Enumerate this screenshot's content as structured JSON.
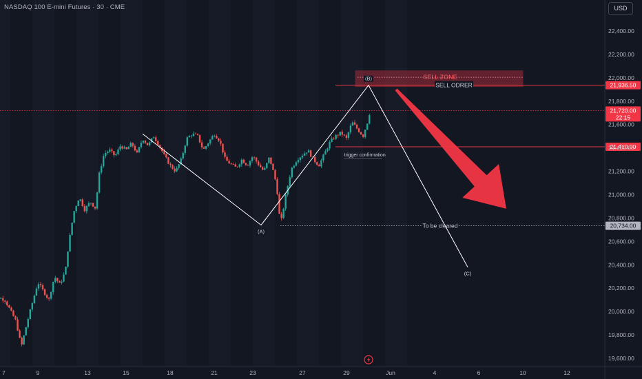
{
  "header": {
    "title": "NASDAQ 100 E-mini Futures · 30 · CME",
    "currency": "USD"
  },
  "colors": {
    "background": "#131722",
    "up": "#26a69a",
    "down": "#ef5350",
    "annotation_red": "#f23645",
    "arrow_red": "#f23645",
    "wave_line": "#ffffff"
  },
  "chart_data": {
    "type": "candlestick",
    "title": "NASDAQ 100 E-mini Futures · 30 · CME",
    "y_axis": {
      "position": "right",
      "ylim": [
        19550,
        22550
      ],
      "ticks": [
        19600,
        19800,
        20000,
        20200,
        20400,
        20600,
        20800,
        21000,
        21200,
        21400,
        21600,
        21800,
        22000,
        22200,
        22400
      ],
      "tick_labels": [
        "19,600.00",
        "19,800.00",
        "20,000.00",
        "20,200.00",
        "20,400.00",
        "20,600.00",
        "20,800.00",
        "21,000.00",
        "21,200.00",
        "21,400.00",
        "21,600.00",
        "21,800.00",
        "22,000.00",
        "22,200.00",
        "22,400.00"
      ]
    },
    "x_axis": {
      "tick_labels": [
        "7",
        "9",
        "13",
        "15",
        "18",
        "21",
        "23",
        "27",
        "29",
        "Jun",
        "4",
        "6",
        "10",
        "12"
      ],
      "tick_units": [
        -3,
        6,
        15,
        22,
        30,
        38,
        45,
        54,
        62,
        70,
        78,
        86,
        94,
        102
      ]
    },
    "grid": false,
    "price_path": [
      [
        -3,
        20150
      ],
      [
        0,
        20100
      ],
      [
        2,
        19920
      ],
      [
        3,
        19700
      ],
      [
        4,
        19900
      ],
      [
        6,
        20250
      ],
      [
        8,
        20100
      ],
      [
        9,
        20300
      ],
      [
        10,
        20230
      ],
      [
        11,
        20350
      ],
      [
        11.5,
        20550
      ],
      [
        12.5,
        20850
      ],
      [
        13.5,
        20980
      ],
      [
        14.5,
        20870
      ],
      [
        15.5,
        20940
      ],
      [
        16.5,
        20880
      ],
      [
        17,
        21150
      ],
      [
        18,
        21350
      ],
      [
        19,
        21380
      ],
      [
        20,
        21330
      ],
      [
        21,
        21420
      ],
      [
        22,
        21380
      ],
      [
        23,
        21440
      ],
      [
        24,
        21350
      ],
      [
        25,
        21480
      ],
      [
        26,
        21420
      ],
      [
        27,
        21500
      ],
      [
        28,
        21420
      ],
      [
        29,
        21330
      ],
      [
        30,
        21250
      ],
      [
        31,
        21200
      ],
      [
        32,
        21300
      ],
      [
        33,
        21480
      ],
      [
        34,
        21520
      ],
      [
        35,
        21500
      ],
      [
        36,
        21380
      ],
      [
        37,
        21450
      ],
      [
        38,
        21520
      ],
      [
        39,
        21460
      ],
      [
        40,
        21300
      ],
      [
        41,
        21260
      ],
      [
        42,
        21230
      ],
      [
        43,
        21300
      ],
      [
        44,
        21250
      ],
      [
        45,
        21330
      ],
      [
        46,
        21260
      ],
      [
        47,
        21200
      ],
      [
        48,
        21320
      ],
      [
        49,
        21150
      ],
      [
        49.5,
        21000
      ],
      [
        50,
        20734
      ],
      [
        51,
        21000
      ],
      [
        52,
        21220
      ],
      [
        53,
        21300
      ],
      [
        54,
        21340
      ],
      [
        55,
        21380
      ],
      [
        56,
        21300
      ],
      [
        57,
        21250
      ],
      [
        58,
        21350
      ],
      [
        59,
        21450
      ],
      [
        60,
        21500
      ],
      [
        61,
        21530
      ],
      [
        62,
        21480
      ],
      [
        63,
        21620
      ],
      [
        64,
        21560
      ],
      [
        65,
        21500
      ],
      [
        66,
        21650
      ],
      [
        66.5,
        21780
      ]
    ],
    "wave_points": [
      {
        "label": "",
        "x": 25,
        "y": 21520
      },
      {
        "label": "(A)",
        "x": 46.5,
        "y": 20740
      },
      {
        "label": "(B)",
        "x": 66,
        "y": 21936
      },
      {
        "label": "(C)",
        "x": 84,
        "y": 20380
      }
    ],
    "levels": [
      {
        "name": "sell-order-line",
        "price": 21936.5,
        "label": "SELL ODRER",
        "price_label": "21,936.50",
        "style": "solid",
        "color": "#f23645"
      },
      {
        "name": "trigger-line",
        "price": 21410,
        "label": "trigger confirmation",
        "price_label": "21,410.00",
        "style": "solid",
        "color": "#f23645"
      },
      {
        "name": "to-be-cleared-line",
        "price": 20734,
        "label": "To be cleared",
        "price_label": "20,734.00",
        "style": "dotted",
        "color": "#b2b5be"
      },
      {
        "name": "last-price-line",
        "price": 21720,
        "label": "",
        "price_label": "21,720.00",
        "sub_label": "22:15",
        "style": "dotted",
        "color": "#f23645"
      }
    ],
    "zones": [
      {
        "name": "sell-zone",
        "label": "SELL ZONE",
        "x_start": 64,
        "x_end": 94,
        "y_low": 21925,
        "y_high": 22060
      }
    ],
    "arrow": {
      "from_x": 71,
      "from_y": 21900,
      "to_x": 91,
      "to_y": 20880
    },
    "events_icon": {
      "x": 66,
      "name": "lightning-icon"
    }
  }
}
